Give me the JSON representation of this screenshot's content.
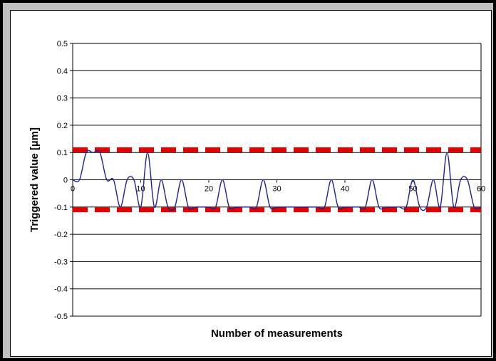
{
  "chart_data": {
    "type": "line",
    "title": "",
    "xlabel": "Number of measurements",
    "ylabel": "Triggered value [µm]",
    "xlim": [
      0,
      60
    ],
    "ylim": [
      -0.5,
      0.5
    ],
    "x_ticks": [
      0,
      10,
      20,
      30,
      40,
      50,
      60
    ],
    "y_ticks": [
      0.5,
      0.4,
      0.3,
      0.2,
      0.1,
      0,
      -0.1,
      -0.2,
      -0.3,
      -0.4,
      -0.5
    ],
    "y_tick_labels": [
      "0.5",
      "0.4",
      "0.3",
      "0.2",
      "0.1",
      "0",
      "-0.1",
      "-0.2",
      "-0.3",
      "-0.4",
      "-0.5"
    ],
    "grid": "horizontal",
    "legend": "none",
    "series": [
      {
        "color": "#1f1f8f",
        "x": [
          0,
          1,
          2,
          3,
          4,
          5,
          6,
          7,
          8,
          9,
          10,
          11,
          12,
          13,
          14,
          15,
          16,
          17,
          18,
          19,
          20,
          21,
          22,
          23,
          24,
          25,
          26,
          27,
          28,
          29,
          30,
          31,
          32,
          33,
          34,
          35,
          36,
          37,
          38,
          39,
          40,
          41,
          42,
          43,
          44,
          45,
          46,
          47,
          48,
          49,
          50,
          51,
          52,
          53,
          54,
          55,
          56,
          57,
          58,
          59,
          60
        ],
        "values": [
          0,
          0,
          0.1,
          0.1,
          0.1,
          0,
          0,
          -0.1,
          0,
          0,
          -0.1,
          0.1,
          -0.1,
          0,
          -0.1,
          -0.1,
          0,
          -0.1,
          -0.1,
          -0.1,
          -0.1,
          -0.1,
          0,
          -0.1,
          -0.1,
          -0.1,
          -0.1,
          -0.1,
          0,
          -0.1,
          -0.1,
          -0.1,
          -0.1,
          -0.1,
          -0.1,
          -0.1,
          -0.1,
          -0.1,
          0,
          -0.1,
          -0.1,
          -0.1,
          -0.1,
          -0.1,
          0,
          -0.1,
          -0.1,
          -0.1,
          -0.1,
          -0.1,
          0,
          -0.1,
          -0.1,
          0,
          -0.1,
          0.1,
          -0.1,
          0,
          0,
          -0.1,
          -0.1
        ]
      }
    ],
    "reference_lines": [
      {
        "y": 0.11,
        "style": "dashed",
        "color": "#e00000"
      },
      {
        "y": -0.11,
        "style": "dashed",
        "color": "#e00000"
      }
    ]
  }
}
